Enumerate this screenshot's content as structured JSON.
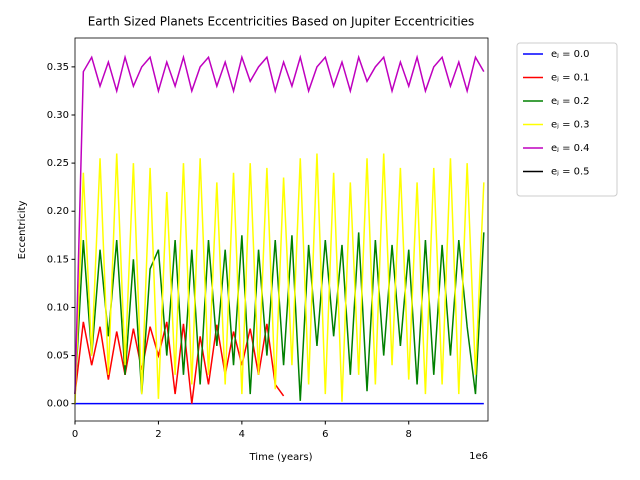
{
  "chart_data": {
    "type": "line",
    "title": "Earth Sized Planets Eccentricities Based on Jupiter Eccentricities",
    "x_label": "Time (years)",
    "y_label": "Eccentricity",
    "x_offset_label": "1e6",
    "x": [
      0,
      200000,
      400000,
      600000,
      800000,
      1000000,
      1200000,
      1400000,
      1600000,
      1800000,
      2000000,
      2200000,
      2400000,
      2600000,
      2800000,
      3000000,
      3200000,
      3400000,
      3600000,
      3800000,
      4000000,
      4200000,
      4400000,
      4600000,
      4800000,
      5000000,
      5200000,
      5400000,
      5600000,
      5800000,
      6000000,
      6200000,
      6400000,
      6600000,
      6800000,
      7000000,
      7200000,
      7400000,
      7600000,
      7800000,
      8000000,
      8200000,
      8400000,
      8600000,
      8800000,
      9000000,
      9200000,
      9400000,
      9600000,
      9800000
    ],
    "series": [
      {
        "name": "eⱼ = 0.0",
        "color": "#0000ff",
        "values": [
          0,
          0,
          0,
          0,
          0,
          0,
          0,
          0,
          0,
          0,
          0,
          0,
          0,
          0,
          0,
          0,
          0,
          0,
          0,
          0,
          0,
          0,
          0,
          0,
          0,
          0,
          0,
          0,
          0,
          0,
          0,
          0,
          0,
          0,
          0,
          0,
          0,
          0,
          0,
          0,
          0,
          0,
          0,
          0,
          0,
          0,
          0,
          0,
          0,
          0
        ]
      },
      {
        "name": "eⱼ = 0.1",
        "color": "#ff0000",
        "values": [
          0.01,
          0.085,
          0.04,
          0.08,
          0.025,
          0.075,
          0.03,
          0.078,
          0.035,
          0.08,
          0.05,
          0.085,
          0.01,
          0.083,
          0.0,
          0.07,
          0.02,
          0.082,
          0.03,
          0.075,
          0.04,
          0.078,
          0.03,
          0.083,
          0.02,
          0.008,
          null,
          null,
          null,
          null,
          null,
          null,
          null,
          null,
          null,
          null,
          null,
          null,
          null,
          null,
          null,
          null,
          null,
          null,
          null,
          null,
          null,
          null,
          null,
          null
        ]
      },
      {
        "name": "eⱼ = 0.2",
        "color": "#008000",
        "values": [
          0.01,
          0.17,
          0.05,
          0.16,
          0.07,
          0.17,
          0.03,
          0.15,
          0.01,
          0.14,
          0.16,
          0.05,
          0.17,
          0.03,
          0.16,
          0.02,
          0.17,
          0.06,
          0.16,
          0.04,
          0.175,
          0.01,
          0.16,
          0.05,
          0.17,
          0.04,
          0.175,
          0.003,
          0.165,
          0.06,
          0.17,
          0.07,
          0.165,
          0.03,
          0.178,
          0.013,
          0.17,
          0.05,
          0.165,
          0.06,
          0.16,
          0.02,
          0.17,
          0.03,
          0.165,
          0.05,
          0.17,
          0.08,
          0.01,
          0.178
        ]
      },
      {
        "name": "eⱼ = 0.3",
        "color": "#ffff00",
        "values": [
          0.0,
          0.24,
          0.05,
          0.255,
          0.03,
          0.26,
          0.04,
          0.25,
          0.01,
          0.245,
          0.005,
          0.22,
          0.03,
          0.25,
          0.02,
          0.255,
          0.03,
          0.23,
          0.02,
          0.24,
          0.01,
          0.25,
          0.03,
          0.245,
          0.015,
          0.235,
          0.04,
          0.255,
          0.02,
          0.26,
          0.01,
          0.24,
          0.002,
          0.23,
          0.03,
          0.255,
          0.02,
          0.26,
          0.04,
          0.245,
          0.025,
          0.23,
          0.01,
          0.245,
          0.02,
          0.255,
          0.01,
          0.25,
          0.03,
          0.23
        ]
      },
      {
        "name": "eⱼ = 0.4",
        "color": "#bf00bf",
        "values": [
          0.01,
          0.345,
          0.36,
          0.33,
          0.355,
          0.325,
          0.36,
          0.33,
          0.35,
          0.36,
          0.325,
          0.355,
          0.33,
          0.36,
          0.325,
          0.35,
          0.36,
          0.33,
          0.355,
          0.325,
          0.36,
          0.335,
          0.35,
          0.36,
          0.325,
          0.355,
          0.33,
          0.36,
          0.325,
          0.35,
          0.36,
          0.33,
          0.355,
          0.325,
          0.36,
          0.335,
          0.35,
          0.36,
          0.325,
          0.355,
          0.33,
          0.36,
          0.325,
          0.35,
          0.36,
          0.33,
          0.355,
          0.325,
          0.36,
          0.345
        ]
      },
      {
        "name": "eⱼ = 0.5",
        "color": "#000000",
        "values": [
          null,
          null,
          null,
          null,
          null,
          null,
          null,
          null,
          null,
          null,
          null,
          null,
          null,
          null,
          null,
          null,
          null,
          null,
          null,
          null,
          null,
          null,
          null,
          null,
          null,
          null,
          null,
          null,
          null,
          null,
          null,
          null,
          null,
          null,
          null,
          null,
          null,
          null,
          null,
          null,
          null,
          null,
          null,
          null,
          null,
          null,
          null,
          null,
          null,
          null
        ]
      }
    ],
    "xlim": [
      0,
      9900000
    ],
    "xticks": [
      {
        "value": 0,
        "label": "0"
      },
      {
        "value": 2000000,
        "label": "2"
      },
      {
        "value": 4000000,
        "label": "4"
      },
      {
        "value": 6000000,
        "label": "6"
      },
      {
        "value": 8000000,
        "label": "8"
      }
    ],
    "ylim": [
      -0.018,
      0.38
    ],
    "yticks": [
      {
        "value": 0,
        "label": "0.00"
      },
      {
        "value": 0.05,
        "label": "0.05"
      },
      {
        "value": 0.1,
        "label": "0.10"
      },
      {
        "value": 0.15,
        "label": "0.15"
      },
      {
        "value": 0.2,
        "label": "0.20"
      },
      {
        "value": 0.25,
        "label": "0.25"
      },
      {
        "value": 0.3,
        "label": "0.30"
      },
      {
        "value": 0.35,
        "label": "0.35"
      }
    ],
    "legend": "outside-upper-right"
  }
}
